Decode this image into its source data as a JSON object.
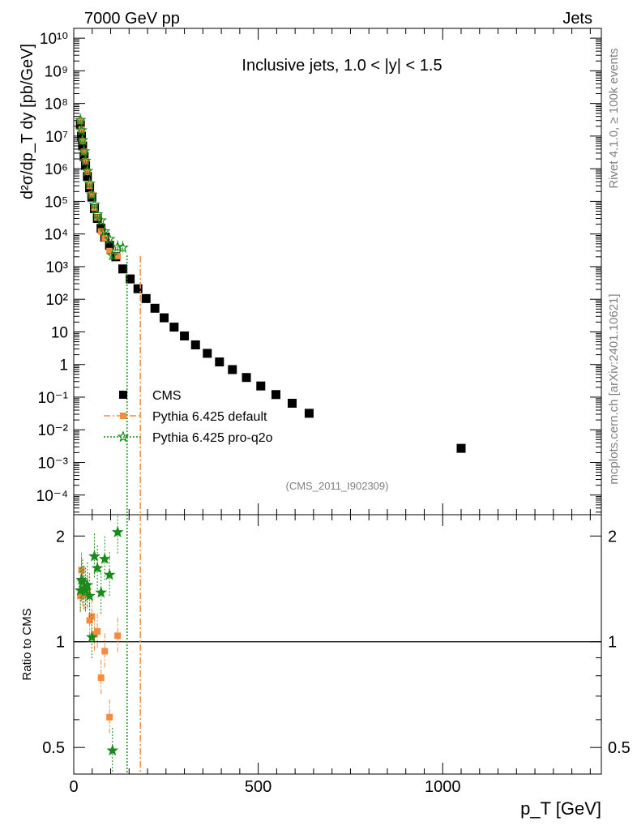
{
  "header": {
    "left": "7000 GeV pp",
    "right": "Jets"
  },
  "side_text": {
    "rivet": "Rivet 4.1.0, ≥ 100k events",
    "mcplots": "mcplots.cern.ch [arXiv:2401.10621]"
  },
  "chart_data": [
    {
      "panel": "main",
      "type": "scatter",
      "title": "Inclusive jets, 1.0 < |y| < 1.5",
      "analysis_id": "(CMS_2011_I902309)",
      "xlabel": "p_T [GeV]",
      "ylabel": "d²σ/dp_T dy [pb/GeV]",
      "yscale": "log",
      "xlim": [
        0,
        1430
      ],
      "ylim": [
        2.5e-05,
        20000000000.0
      ],
      "x_ticks": [
        "0",
        "500",
        "1000"
      ],
      "y_ticks": [
        "10⁻⁴",
        "10⁻³",
        "10⁻²",
        "10⁻¹",
        "1",
        "10",
        "10²",
        "10³",
        "10⁴",
        "10⁵",
        "10⁶",
        "10⁷",
        "10⁸",
        "10⁹",
        "10¹⁰"
      ],
      "legend_position": "center-left",
      "series": [
        {
          "name": "CMS",
          "marker": "square",
          "color": "#000000",
          "x": [
            18,
            21,
            24,
            28,
            32,
            37,
            43,
            49,
            56,
            64,
            74,
            84,
            97,
            114,
            133,
            153,
            174,
            196,
            220,
            245,
            272,
            300,
            330,
            362,
            395,
            430,
            468,
            507,
            548,
            592,
            638,
            1050
          ],
          "y": [
            22000000.0,
            10000000.0,
            5000000.0,
            2400000.0,
            1250000.0,
            580000.0,
            260000.0,
            135000.0,
            60000.0,
            30000.0,
            15000.0,
            8000.0,
            4500.0,
            2000.0,
            850,
            420,
            210,
            105,
            53,
            27,
            14,
            7.5,
            4.0,
            2.2,
            1.2,
            0.7,
            0.4,
            0.22,
            0.12,
            0.065,
            0.032,
            0.0027
          ]
        },
        {
          "name": "Pythia 6.425 default",
          "marker": "filled-square",
          "line": "dash-dot",
          "color": "#f58b3f",
          "x": [
            18,
            21,
            24,
            28,
            32,
            37,
            43,
            49,
            56,
            64,
            74,
            84,
            97,
            119
          ],
          "y": [
            29000000.0,
            16000000.0,
            7000000.0,
            3300000.0,
            1700000.0,
            800000.0,
            300000.0,
            160000.0,
            63000.0,
            32000.0,
            12000.0,
            7500.0,
            3000.0,
            2100.0
          ]
        },
        {
          "name": "Pythia 6.425 pro-q2o",
          "marker": "open-star",
          "line": "dotted",
          "color": "#1a8a1a",
          "x": [
            18,
            21,
            24,
            28,
            32,
            37,
            43,
            49,
            56,
            64,
            74,
            84,
            97,
            105,
            119,
            133
          ],
          "y": [
            31000000.0,
            15000000.0,
            7500000.0,
            3400000.0,
            1750000.0,
            850000.0,
            350000.0,
            160000.0,
            80000.0,
            40000.0,
            26000.0,
            12000.0,
            7000.0,
            2200.0,
            4000.0,
            3800.0
          ]
        }
      ]
    },
    {
      "panel": "ratio",
      "type": "scatter",
      "ylabel": "Ratio to CMS",
      "yscale": "log",
      "xlim": [
        0,
        1430
      ],
      "ylim": [
        0.42,
        2.3
      ],
      "y_ticks": [
        "0.5",
        "1",
        "2"
      ],
      "reference_line": 1,
      "series": [
        {
          "name": "Pythia 6.425 default",
          "color": "#f58b3f",
          "x": [
            18,
            21,
            24,
            28,
            32,
            37,
            43,
            49,
            56,
            64,
            74,
            84,
            97,
            119
          ],
          "y": [
            1.35,
            1.6,
            1.4,
            1.38,
            1.36,
            1.38,
            1.15,
            1.18,
            1.05,
            1.07,
            0.79,
            0.94,
            0.61,
            1.04
          ]
        },
        {
          "name": "Pythia 6.425 pro-q2o",
          "color": "#1a8a1a",
          "x": [
            18,
            21,
            24,
            28,
            32,
            37,
            43,
            49,
            56,
            64,
            74,
            84,
            97,
            105,
            119
          ],
          "y": [
            1.4,
            1.5,
            1.48,
            1.42,
            1.4,
            1.45,
            1.35,
            1.03,
            1.75,
            1.62,
            1.38,
            1.72,
            1.55,
            0.49,
            2.05
          ]
        }
      ]
    }
  ]
}
